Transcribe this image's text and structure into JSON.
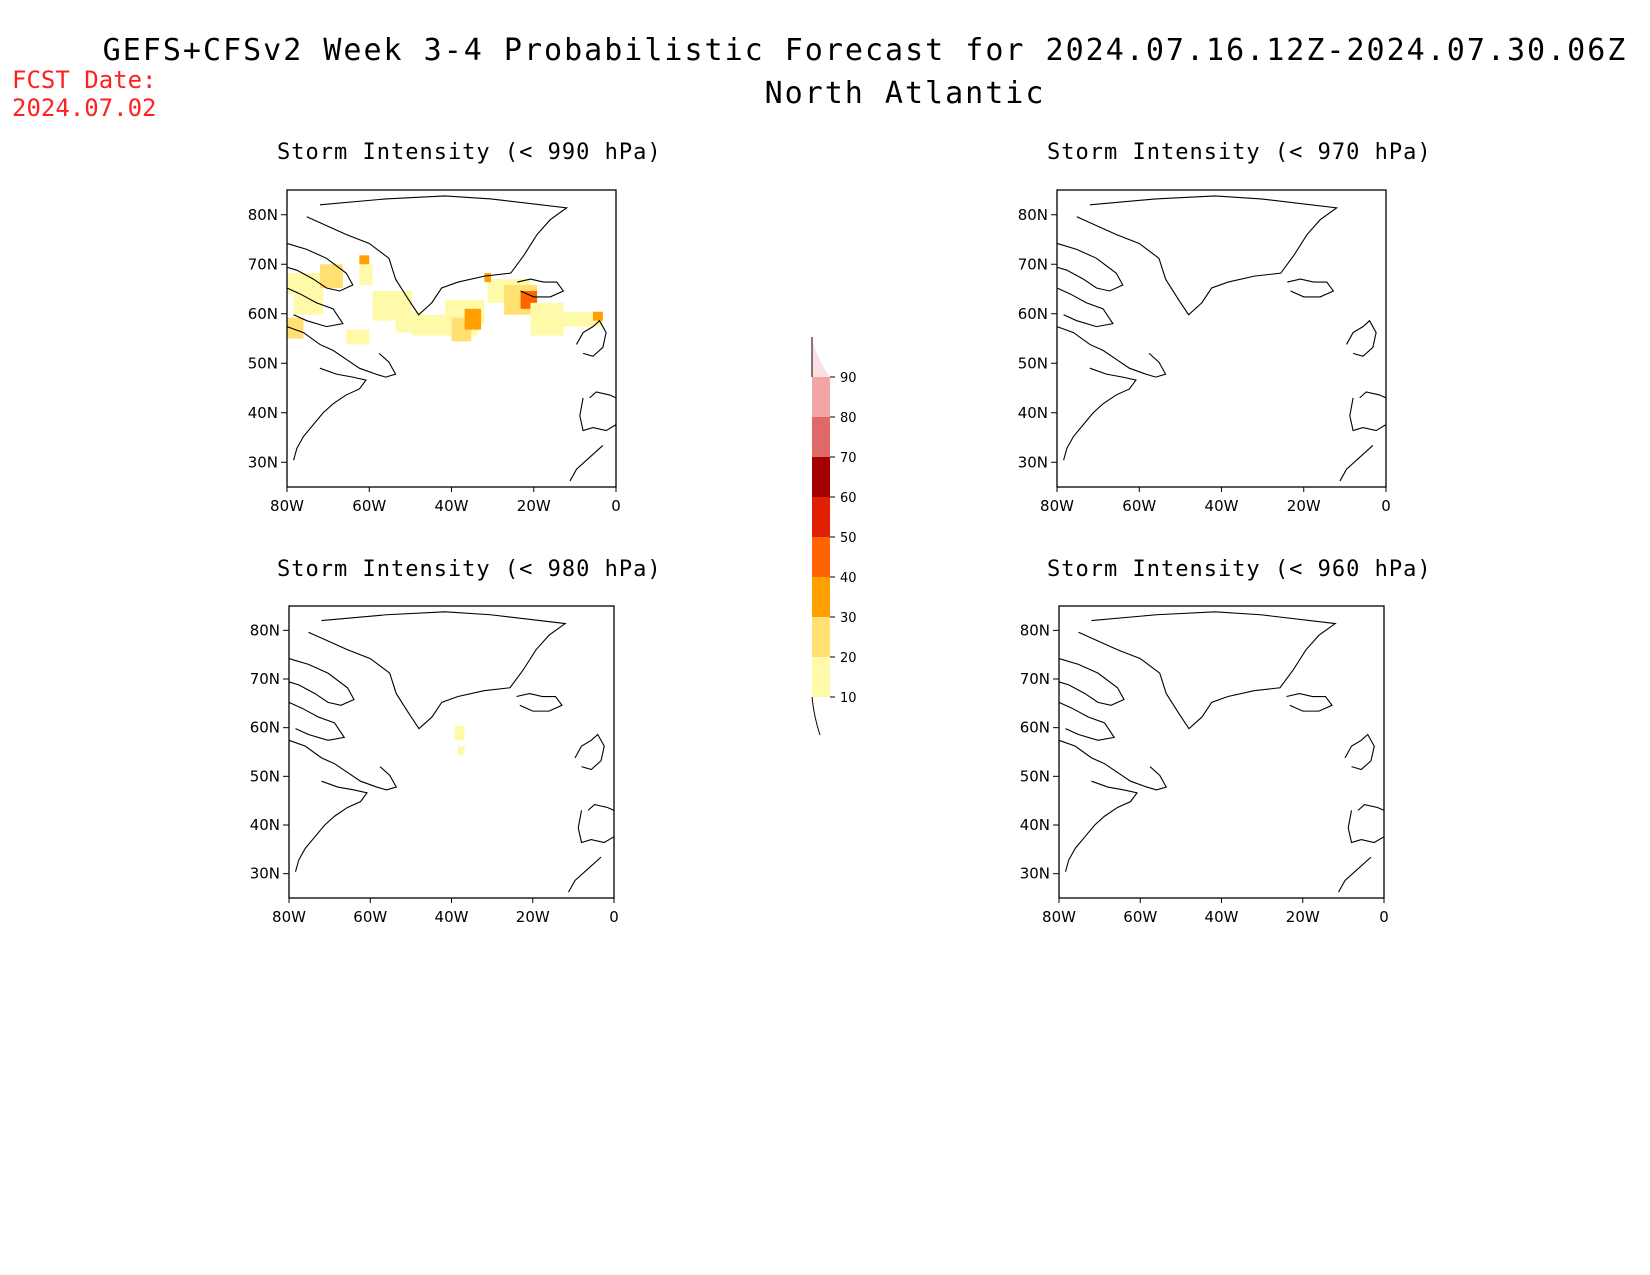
{
  "header": {
    "title": "GEFS+CFSv2 Week 3-4 Probabilistic Forecast for 2024.07.16.12Z-2024.07.30.06Z",
    "region": "North Atlantic",
    "fcst_date_label": "FCST Date:",
    "fcst_date_value": "2024.07.02",
    "fcst_color": "#ff2020"
  },
  "axes": {
    "lat_labels": [
      "80N",
      "70N",
      "60N",
      "50N",
      "40N",
      "30N"
    ],
    "lon_labels": [
      "80W",
      "60W",
      "40W",
      "20W",
      "0"
    ]
  },
  "panels": [
    {
      "id": "p990",
      "title": "Storm Intensity (< 990 hPa)"
    },
    {
      "id": "p970",
      "title": "Storm Intensity (< 970 hPa)"
    },
    {
      "id": "p980",
      "title": "Storm Intensity (< 980 hPa)"
    },
    {
      "id": "p960",
      "title": "Storm Intensity (< 960 hPa)"
    }
  ],
  "colorbar": {
    "labels": [
      "90",
      "80",
      "70",
      "60",
      "50",
      "40",
      "30",
      "20",
      "10"
    ],
    "colors": [
      "#fbe1e1",
      "#f3a5a5",
      "#e06868",
      "#a50000",
      "#e02000",
      "#ff6400",
      "#ffa000",
      "#ffe070",
      "#fffaaa"
    ]
  }
}
